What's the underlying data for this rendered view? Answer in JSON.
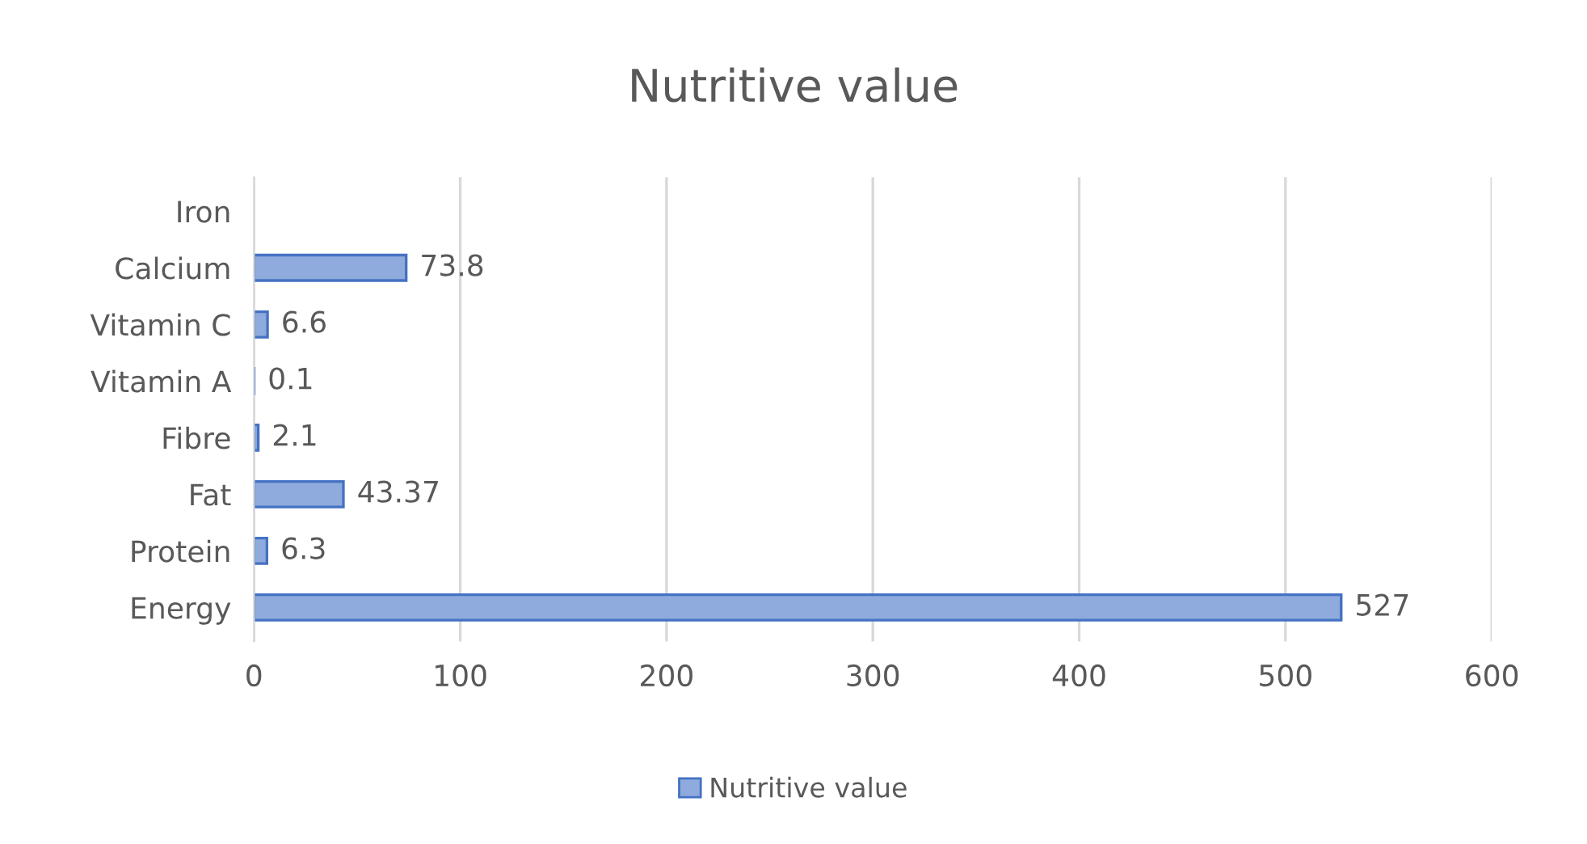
{
  "chart_data": {
    "type": "bar",
    "orientation": "horizontal",
    "title": "Nutritive value",
    "categories": [
      "Iron",
      "Calcium",
      "Vitamin C",
      "Vitamin A",
      "Fibre",
      "Fat",
      "Protein",
      "Energy"
    ],
    "series": [
      {
        "name": "Nutritive value",
        "color": "#8faadc",
        "values": [
          null,
          73.8,
          6.6,
          0.1,
          2.1,
          43.37,
          6.3,
          527
        ]
      }
    ],
    "xlim": [
      0,
      600
    ],
    "xticks": [
      0,
      100,
      200,
      300,
      400,
      500,
      600
    ],
    "grid": "x",
    "legend": "bottom",
    "data_labels": true
  }
}
